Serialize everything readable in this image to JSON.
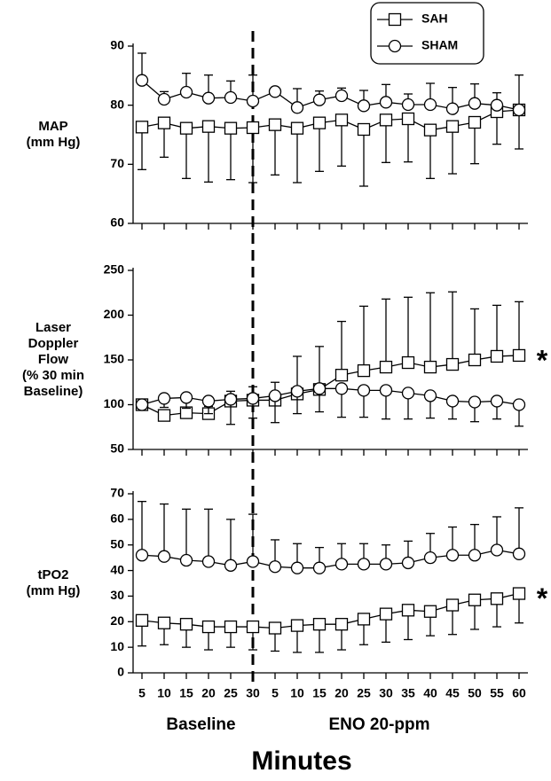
{
  "x_axis": {
    "groups": [
      {
        "label": "Baseline",
        "categories": [
          "5",
          "10",
          "15",
          "20",
          "25",
          "30"
        ]
      },
      {
        "label": "ENO 20-ppm",
        "categories": [
          "5",
          "10",
          "15",
          "20",
          "25",
          "30",
          "35",
          "40",
          "45",
          "50",
          "55",
          "60"
        ]
      }
    ],
    "label": "Minutes"
  },
  "chart_data": [
    {
      "type": "line",
      "ylabel": [
        "MAP",
        "(mm Hg)"
      ],
      "ylim": [
        60,
        90
      ],
      "yticks": [
        60,
        70,
        80,
        90
      ],
      "legend": "upper right",
      "series": [
        {
          "name": "SAH",
          "color": "#000000",
          "marker": "square",
          "error_direction": "down",
          "values": [
            76.3,
            77,
            76.1,
            76.4,
            76.1,
            76.2,
            76.7,
            76.1,
            77,
            77.5,
            75.9,
            77.5,
            77.7,
            75.8,
            76.4,
            77.1,
            78.9,
            79.2
          ],
          "errors": [
            7.2,
            5.8,
            8.5,
            9.4,
            8.7,
            9.3,
            8.5,
            9.2,
            8.2,
            7.8,
            9.6,
            7.2,
            7.3,
            8.2,
            8,
            7,
            5.5,
            6.6
          ]
        },
        {
          "name": "SHAM",
          "color": "#000000",
          "marker": "circle",
          "error_direction": "up",
          "values": [
            84.2,
            81,
            82.2,
            81.2,
            81.3,
            80.7,
            82.3,
            79.6,
            80.9,
            81.6,
            79.9,
            80.5,
            80.1,
            80.1,
            79.4,
            80.3,
            80,
            79.2
          ],
          "errors": [
            4.6,
            1.3,
            3.2,
            3.9,
            2.8,
            4.4,
            0.5,
            3.2,
            1.5,
            1.3,
            2.6,
            3,
            1.8,
            3.6,
            3.6,
            3.3,
            2.1,
            5.9
          ]
        }
      ]
    },
    {
      "type": "line",
      "ylabel": [
        "Laser",
        "Doppler",
        "Flow",
        "(% 30 min",
        "Baseline)"
      ],
      "ylim": [
        50,
        250
      ],
      "yticks": [
        50,
        100,
        150,
        200,
        250
      ],
      "annotation": "*",
      "series": [
        {
          "name": "SAH",
          "color": "#000000",
          "marker": "square",
          "error_direction": "up",
          "values": [
            100,
            88,
            91,
            90,
            104,
            105,
            105,
            112,
            117,
            133,
            138,
            142,
            147,
            142,
            145,
            150,
            154,
            155
          ],
          "errors": [
            0,
            5,
            5,
            8,
            11,
            15,
            20,
            42,
            48,
            60,
            72,
            76,
            73,
            83,
            81,
            57,
            57,
            60
          ]
        },
        {
          "name": "SHAM",
          "color": "#000000",
          "marker": "circle",
          "error_direction": "down",
          "values": [
            100,
            107,
            108,
            104,
            106,
            107,
            110,
            115,
            118,
            118,
            116,
            116,
            113,
            110,
            104,
            103,
            104,
            100
          ],
          "errors": [
            0,
            10,
            12,
            14,
            28,
            22,
            30,
            25,
            26,
            32,
            30,
            32,
            29,
            25,
            20,
            22,
            20,
            24
          ]
        }
      ]
    },
    {
      "type": "line",
      "ylabel": [
        "tPO2",
        "(mm Hg)"
      ],
      "ylim": [
        0,
        70
      ],
      "yticks": [
        0,
        10,
        20,
        30,
        40,
        50,
        60,
        70
      ],
      "annotation": "*",
      "series": [
        {
          "name": "SAH",
          "color": "#000000",
          "marker": "square",
          "error_direction": "down",
          "values": [
            20.5,
            19.5,
            19,
            18,
            18,
            18,
            17.5,
            18.5,
            19,
            19,
            21,
            23,
            24.5,
            24,
            26.5,
            28.5,
            29,
            31
          ],
          "errors": [
            10,
            8.5,
            9,
            9,
            8,
            9,
            9,
            10.5,
            11,
            10,
            10,
            11,
            11.5,
            9.5,
            11.5,
            11.5,
            11,
            11.5
          ]
        },
        {
          "name": "SHAM",
          "color": "#000000",
          "marker": "circle",
          "error_direction": "up",
          "values": [
            46,
            45.5,
            44,
            43.5,
            42,
            43.5,
            41.5,
            41,
            41,
            42.5,
            42.5,
            42.5,
            43,
            45,
            46,
            46,
            48,
            46.5
          ],
          "errors": [
            21,
            20.5,
            20,
            20.5,
            18,
            18.5,
            10.5,
            9.5,
            8,
            8,
            8,
            7.5,
            8.5,
            9.5,
            11,
            12,
            13,
            18
          ]
        }
      ]
    }
  ]
}
